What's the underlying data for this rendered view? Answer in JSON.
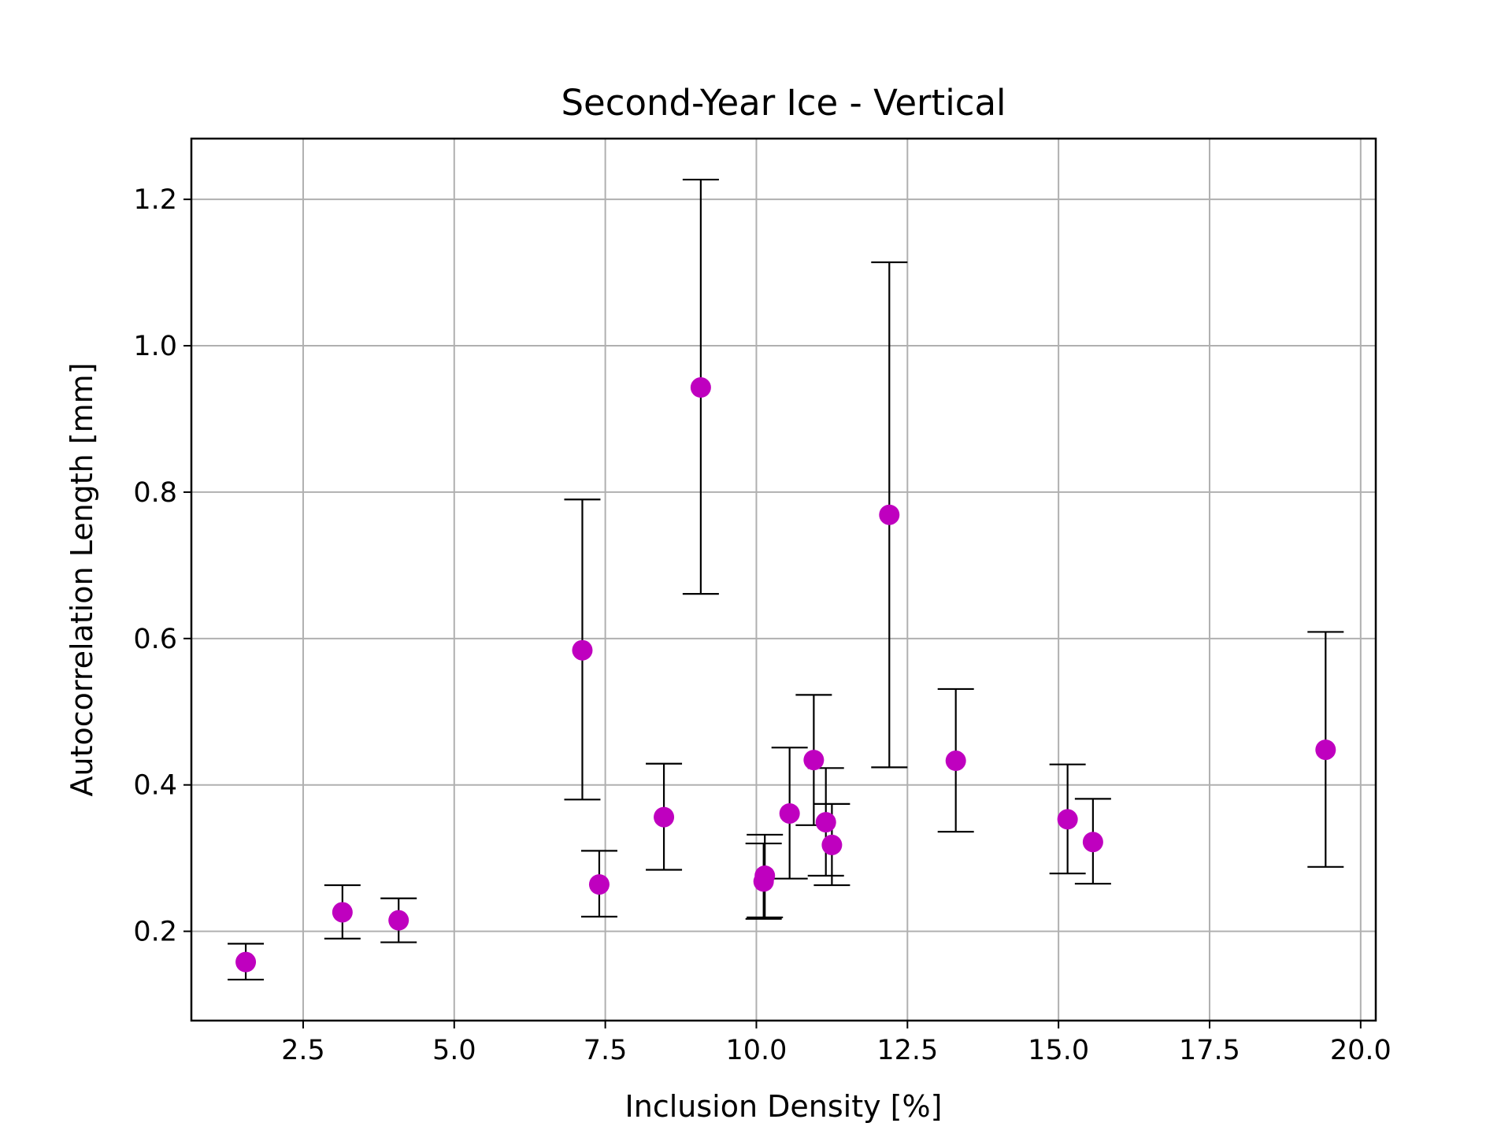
{
  "chart_data": {
    "type": "scatter",
    "title": "Second-Year Ice - Vertical",
    "xlabel": "Inclusion Density [%]",
    "ylabel": "Autocorrelation Length [mm]",
    "xlim": [
      0.65,
      20.25
    ],
    "ylim": [
      0.078,
      1.283
    ],
    "xticks": [
      2.5,
      5.0,
      7.5,
      10.0,
      12.5,
      15.0,
      17.5,
      20.0
    ],
    "xtick_labels": [
      "2.5",
      "5.0",
      "7.5",
      "10.0",
      "12.5",
      "15.0",
      "17.5",
      "20.0"
    ],
    "yticks": [
      0.2,
      0.4,
      0.6,
      0.8,
      1.0,
      1.2
    ],
    "ytick_labels": [
      "0.2",
      "0.4",
      "0.6",
      "0.8",
      "1.0",
      "1.2"
    ],
    "grid": true,
    "marker_color": "#bf00bf",
    "errorbar_color": "#000000",
    "grid_color": "#b0b0b0",
    "points": [
      {
        "x": 1.55,
        "y": 0.158,
        "lo": 0.134,
        "hi": 0.183
      },
      {
        "x": 3.15,
        "y": 0.226,
        "lo": 0.19,
        "hi": 0.263
      },
      {
        "x": 4.08,
        "y": 0.215,
        "lo": 0.185,
        "hi": 0.245
      },
      {
        "x": 7.12,
        "y": 0.584,
        "lo": 0.38,
        "hi": 0.79
      },
      {
        "x": 7.4,
        "y": 0.264,
        "lo": 0.22,
        "hi": 0.31
      },
      {
        "x": 8.47,
        "y": 0.356,
        "lo": 0.284,
        "hi": 0.429
      },
      {
        "x": 9.08,
        "y": 0.943,
        "lo": 0.661,
        "hi": 1.227
      },
      {
        "x": 10.12,
        "y": 0.268,
        "lo": 0.217,
        "hi": 0.32
      },
      {
        "x": 10.14,
        "y": 0.276,
        "lo": 0.219,
        "hi": 0.332
      },
      {
        "x": 10.55,
        "y": 0.361,
        "lo": 0.272,
        "hi": 0.451
      },
      {
        "x": 10.95,
        "y": 0.434,
        "lo": 0.345,
        "hi": 0.523
      },
      {
        "x": 11.15,
        "y": 0.349,
        "lo": 0.276,
        "hi": 0.423
      },
      {
        "x": 11.25,
        "y": 0.318,
        "lo": 0.263,
        "hi": 0.374
      },
      {
        "x": 12.2,
        "y": 0.769,
        "lo": 0.424,
        "hi": 1.114
      },
      {
        "x": 13.3,
        "y": 0.433,
        "lo": 0.336,
        "hi": 0.531
      },
      {
        "x": 15.15,
        "y": 0.353,
        "lo": 0.279,
        "hi": 0.428
      },
      {
        "x": 15.57,
        "y": 0.322,
        "lo": 0.265,
        "hi": 0.381
      },
      {
        "x": 19.42,
        "y": 0.448,
        "lo": 0.288,
        "hi": 0.609
      }
    ]
  }
}
